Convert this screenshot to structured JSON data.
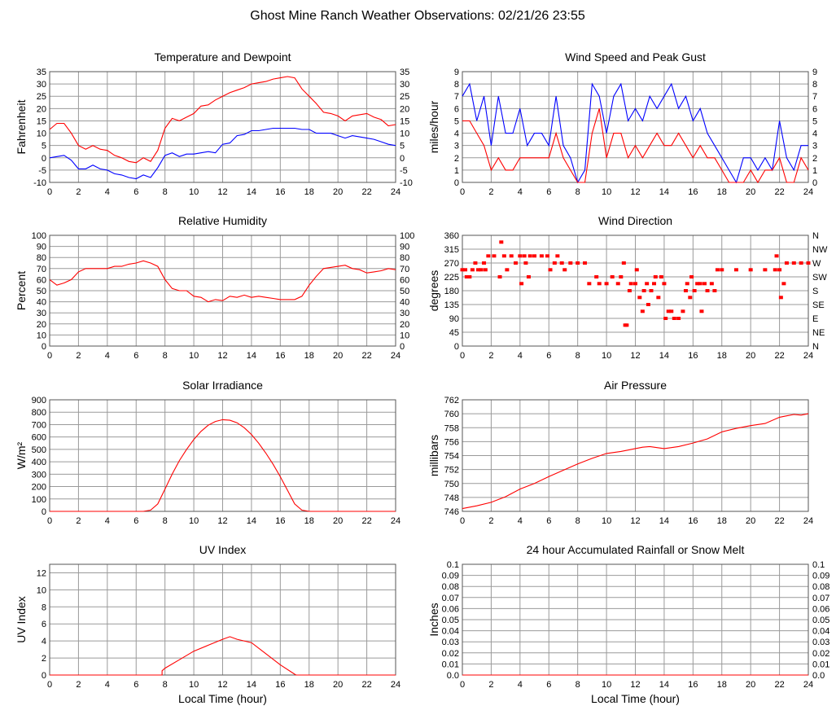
{
  "page_title": "Ghost Mine Ranch Weather Observations: 02/21/26 23:55",
  "xlabel": "Local Time (hour)",
  "xticks": [
    "0",
    "2",
    "4",
    "6",
    "8",
    "10",
    "12",
    "14",
    "16",
    "18",
    "20",
    "22",
    "24"
  ],
  "chart_data": [
    {
      "id": "temperature",
      "type": "line",
      "title": "Temperature and Dewpoint",
      "ylabel": "Fahrenheit",
      "ylim": [
        -10,
        35
      ],
      "yticks": [
        "-10",
        "-5",
        "0",
        "5",
        "10",
        "15",
        "20",
        "25",
        "30",
        "35"
      ],
      "right_ticks": [
        "-10",
        "-5",
        "0",
        "5",
        "10",
        "15",
        "20",
        "25",
        "30",
        "35"
      ],
      "xlim": [
        0,
        24
      ],
      "series": [
        {
          "color": "#ff0000",
          "x": [
            0,
            0.5,
            1,
            1.5,
            2,
            2.5,
            3,
            3.5,
            4,
            4.5,
            5,
            5.5,
            6,
            6.5,
            7,
            7.5,
            8,
            8.5,
            9,
            9.5,
            10,
            10.5,
            11,
            11.5,
            12,
            12.5,
            13,
            13.5,
            14,
            14.5,
            15,
            15.5,
            16,
            16.5,
            17,
            17.5,
            18,
            18.5,
            19,
            19.5,
            20,
            20.5,
            21,
            21.5,
            22,
            22.5,
            23,
            23.5,
            24
          ],
          "y": [
            11.5,
            14,
            14,
            10,
            5,
            3.5,
            5,
            3.5,
            3,
            1,
            0,
            -1.5,
            -2,
            0,
            -1.5,
            3,
            12,
            16,
            15,
            16.5,
            18,
            21,
            21.5,
            23.5,
            25,
            26.5,
            27.5,
            28.5,
            30,
            30.5,
            31,
            32,
            32.5,
            33,
            32.5,
            28,
            25,
            22,
            18.5,
            18,
            17,
            15,
            17,
            17.5,
            18,
            16.5,
            15.5,
            13,
            13.5
          ]
        },
        {
          "color": "#0000ff",
          "x": [
            0,
            0.5,
            1,
            1.5,
            2,
            2.5,
            3,
            3.5,
            4,
            4.5,
            5,
            5.5,
            6,
            6.5,
            7,
            7.5,
            8,
            8.5,
            9,
            9.5,
            10,
            10.5,
            11,
            11.5,
            12,
            12.5,
            13,
            13.5,
            14,
            14.5,
            15,
            15.5,
            16,
            16.5,
            17,
            17.5,
            18,
            18.5,
            19,
            19.5,
            20,
            20.5,
            21,
            21.5,
            22,
            22.5,
            23,
            23.5,
            24
          ],
          "y": [
            0,
            0.5,
            1,
            -1,
            -4.5,
            -4.5,
            -3,
            -4.5,
            -5,
            -6.5,
            -7,
            -8,
            -8.5,
            -7,
            -8,
            -4,
            1,
            2,
            0.5,
            1.5,
            1.5,
            2,
            2.5,
            2,
            5.5,
            6,
            9,
            9.5,
            11,
            11,
            11.5,
            12,
            12,
            12,
            12,
            11.5,
            11.5,
            10,
            10,
            10,
            9,
            8,
            9,
            8.5,
            8,
            7.5,
            6.5,
            5.5,
            5
          ]
        }
      ]
    },
    {
      "id": "wind-speed",
      "type": "line",
      "title": "Wind Speed and Peak Gust",
      "ylabel": "miles/hour",
      "ylim": [
        0,
        9
      ],
      "yticks": [
        "0",
        "1",
        "2",
        "3",
        "4",
        "5",
        "6",
        "7",
        "8",
        "9"
      ],
      "right_ticks": [
        "0",
        "1",
        "2",
        "3",
        "4",
        "5",
        "6",
        "7",
        "8",
        "9"
      ],
      "xlim": [
        0,
        24
      ],
      "series": [
        {
          "color": "#0000ff",
          "x": [
            0,
            0.5,
            1,
            1.5,
            2,
            2.5,
            3,
            3.5,
            4,
            4.5,
            5,
            5.5,
            6,
            6.5,
            7,
            7.5,
            8,
            8.5,
            9,
            9.5,
            10,
            10.5,
            11,
            11.5,
            12,
            12.5,
            13,
            13.5,
            14,
            14.5,
            15,
            15.5,
            16,
            16.5,
            17,
            17.5,
            18,
            18.5,
            19,
            19.5,
            20,
            20.5,
            21,
            21.5,
            22,
            22.5,
            23,
            23.5,
            24
          ],
          "y": [
            7,
            8,
            5,
            7,
            3,
            7,
            4,
            4,
            6,
            3,
            4,
            4,
            3,
            7,
            3,
            2,
            0,
            1,
            8,
            7,
            4,
            7,
            8,
            5,
            6,
            5,
            7,
            6,
            7,
            8,
            6,
            7,
            5,
            6,
            4,
            3,
            2,
            1,
            0,
            2,
            2,
            1,
            2,
            1,
            5,
            2,
            1,
            3,
            3
          ]
        },
        {
          "color": "#ff0000",
          "x": [
            0,
            0.5,
            1,
            1.5,
            2,
            2.5,
            3,
            3.5,
            4,
            4.5,
            5,
            5.5,
            6,
            6.5,
            7,
            7.5,
            8,
            8.5,
            9,
            9.5,
            10,
            10.5,
            11,
            11.5,
            12,
            12.5,
            13,
            13.5,
            14,
            14.5,
            15,
            15.5,
            16,
            16.5,
            17,
            17.5,
            18,
            18.5,
            19,
            19.5,
            20,
            20.5,
            21,
            21.5,
            22,
            22.5,
            23,
            23.5,
            24
          ],
          "y": [
            5,
            5,
            4,
            3,
            1,
            2,
            1,
            1,
            2,
            2,
            2,
            2,
            2,
            4,
            2,
            1,
            0,
            0,
            4,
            6,
            2,
            4,
            4,
            2,
            3,
            2,
            3,
            4,
            3,
            3,
            4,
            3,
            2,
            3,
            2,
            2,
            1,
            0,
            0,
            0,
            1,
            0,
            1,
            1,
            2,
            0,
            0,
            2,
            1
          ]
        }
      ]
    },
    {
      "id": "humidity",
      "type": "line",
      "title": "Relative Humidity",
      "ylabel": "Percent",
      "ylim": [
        0,
        100
      ],
      "yticks": [
        "0",
        "10",
        "20",
        "30",
        "40",
        "50",
        "60",
        "70",
        "80",
        "90",
        "100"
      ],
      "right_ticks": [
        "0",
        "10",
        "20",
        "30",
        "40",
        "50",
        "60",
        "70",
        "80",
        "90",
        "100"
      ],
      "xlim": [
        0,
        24
      ],
      "series": [
        {
          "color": "#ff0000",
          "x": [
            0,
            0.5,
            1,
            1.5,
            2,
            2.5,
            3,
            3.5,
            4,
            4.5,
            5,
            5.5,
            6,
            6.5,
            7,
            7.5,
            8,
            8.5,
            9,
            9.5,
            10,
            10.5,
            11,
            11.5,
            12,
            12.5,
            13,
            13.5,
            14,
            14.5,
            15,
            15.5,
            16,
            16.5,
            17,
            17.5,
            18,
            18.5,
            19,
            19.5,
            20,
            20.5,
            21,
            21.5,
            22,
            22.5,
            23,
            23.5,
            24
          ],
          "y": [
            60,
            55,
            57,
            60,
            67,
            70,
            70,
            70,
            70,
            72,
            72,
            74,
            75,
            77,
            75,
            72,
            60,
            52,
            50,
            50,
            45,
            44,
            40,
            42,
            41,
            45,
            44,
            46,
            44,
            45,
            44,
            43,
            42,
            42,
            42,
            45,
            55,
            63,
            70,
            71,
            72,
            73,
            70,
            69,
            66,
            67,
            68,
            70,
            69
          ]
        }
      ]
    },
    {
      "id": "wind-direction",
      "type": "scatter",
      "title": "Wind Direction",
      "ylabel": "degrees",
      "ylim": [
        0,
        360
      ],
      "yticks": [
        "0",
        "45",
        "90",
        "135",
        "180",
        "225",
        "270",
        "315",
        "360"
      ],
      "right_ticks": [
        "N",
        "NE",
        "E",
        "SE",
        "S",
        "SW",
        "W",
        "NW",
        "N"
      ],
      "xlim": [
        0,
        24
      ],
      "series": [
        {
          "color": "#ff0000",
          "x": [
            0,
            0.2,
            0.3,
            0.5,
            0.7,
            0.9,
            1.1,
            1.3,
            1.5,
            1.6,
            1.8,
            2.2,
            2.6,
            2.7,
            2.9,
            3.1,
            3.4,
            3.7,
            4,
            4.1,
            4.3,
            4.4,
            4.6,
            4.7,
            5,
            5.5,
            5.9,
            6.1,
            6.4,
            6.6,
            6.9,
            7.1,
            7.5,
            8,
            8.5,
            8.8,
            9.3,
            9.5,
            10,
            10.4,
            10.8,
            11,
            11.2,
            11.3,
            11.4,
            11.6,
            11.7,
            12,
            12.1,
            12.3,
            12.5,
            12.6,
            12.8,
            12.9,
            13.1,
            13.3,
            13.4,
            13.6,
            13.8,
            14,
            14.1,
            14.3,
            14.5,
            14.7,
            15,
            15.3,
            15.5,
            15.6,
            15.8,
            15.9,
            16.1,
            16.3,
            16.5,
            16.6,
            16.8,
            17,
            17.3,
            17.5,
            17.7,
            18,
            19,
            20,
            21,
            21.7,
            21.8,
            22,
            22.1,
            22.3,
            22.5,
            23,
            23.5,
            24
          ],
          "y": [
            248,
            248,
            225,
            225,
            248,
            270,
            248,
            248,
            270,
            248,
            293,
            293,
            225,
            338,
            293,
            248,
            293,
            270,
            293,
            203,
            293,
            270,
            225,
            293,
            293,
            293,
            293,
            248,
            270,
            293,
            270,
            248,
            270,
            270,
            270,
            203,
            225,
            203,
            203,
            225,
            203,
            225,
            270,
            68,
            68,
            180,
            203,
            203,
            248,
            158,
            113,
            180,
            203,
            135,
            180,
            203,
            225,
            158,
            225,
            203,
            90,
            113,
            113,
            90,
            90,
            113,
            180,
            203,
            158,
            225,
            180,
            203,
            203,
            113,
            203,
            180,
            203,
            180,
            248,
            248,
            248,
            248,
            248,
            248,
            293,
            248,
            158,
            203,
            270,
            270,
            270,
            270
          ]
        }
      ]
    },
    {
      "id": "solar",
      "type": "line",
      "title": "Solar Irradiance",
      "ylabel": "W/m²",
      "ylim": [
        0,
        900
      ],
      "yticks": [
        "0",
        "100",
        "200",
        "300",
        "400",
        "500",
        "600",
        "700",
        "800",
        "900"
      ],
      "right_ticks": [],
      "xlim": [
        0,
        24
      ],
      "series": [
        {
          "color": "#ff0000",
          "x": [
            0,
            6.5,
            7,
            7.5,
            8,
            8.5,
            9,
            9.5,
            10,
            10.5,
            11,
            11.5,
            12,
            12.5,
            13,
            13.5,
            14,
            14.5,
            15,
            15.5,
            16,
            16.5,
            17,
            17.5,
            18,
            24
          ],
          "y": [
            0,
            0,
            10,
            60,
            180,
            300,
            410,
            500,
            580,
            645,
            695,
            725,
            740,
            735,
            715,
            675,
            620,
            550,
            470,
            380,
            280,
            170,
            60,
            10,
            0,
            0
          ]
        }
      ]
    },
    {
      "id": "pressure",
      "type": "line",
      "title": "Air Pressure",
      "ylabel": "millibars",
      "ylim": [
        746,
        762
      ],
      "yticks": [
        "746",
        "748",
        "750",
        "752",
        "754",
        "756",
        "758",
        "760",
        "762"
      ],
      "right_ticks": [],
      "xlim": [
        0,
        24
      ],
      "series": [
        {
          "color": "#ff0000",
          "x": [
            0,
            1,
            2,
            3,
            4,
            5,
            6,
            7,
            8,
            9,
            10,
            11,
            12,
            12.5,
            13,
            14,
            15,
            16,
            17,
            18,
            19,
            20,
            21,
            22,
            22.5,
            23,
            23.5,
            24
          ],
          "y": [
            746.4,
            746.8,
            747.3,
            748.1,
            749.2,
            750,
            751,
            751.9,
            752.8,
            753.6,
            754.3,
            754.6,
            755,
            755.2,
            755.3,
            755,
            755.3,
            755.8,
            756.4,
            757.4,
            757.9,
            758.3,
            758.6,
            759.5,
            759.7,
            759.9,
            759.8,
            760
          ]
        }
      ]
    },
    {
      "id": "uv",
      "type": "line",
      "title": "UV Index",
      "ylabel": "UV Index",
      "ylim": [
        0,
        13
      ],
      "yticks": [
        "0",
        "2",
        "4",
        "6",
        "8",
        "10",
        "12"
      ],
      "right_ticks": [],
      "xlim": [
        0,
        24
      ],
      "series": [
        {
          "color": "#ff0000",
          "x": [
            0,
            7.8,
            7.8,
            8,
            9,
            10,
            11,
            12,
            12.5,
            13,
            14,
            15,
            16,
            17,
            17.1,
            24
          ],
          "y": [
            0,
            0,
            0.5,
            0.8,
            1.8,
            2.8,
            3.5,
            4.2,
            4.5,
            4.2,
            3.8,
            2.5,
            1.2,
            0.1,
            0,
            0
          ]
        }
      ]
    },
    {
      "id": "rain",
      "type": "line",
      "title": "24 hour Accumulated Rainfall or Snow Melt",
      "ylabel": "Inches",
      "ylim": [
        0,
        0.1
      ],
      "yticks": [
        "0.0",
        "0.01",
        "0.02",
        "0.03",
        "0.04",
        "0.05",
        "0.06",
        "0.07",
        "0.08",
        "0.09",
        "0.1"
      ],
      "right_ticks": [
        "0.0",
        "0.01",
        "0.02",
        "0.03",
        "0.04",
        "0.05",
        "0.06",
        "0.07",
        "0.08",
        "0.09",
        "0.1"
      ],
      "xlim": [
        0,
        24
      ],
      "series": [
        {
          "color": "#ff0000",
          "x": [
            0,
            24
          ],
          "y": [
            0,
            0
          ]
        }
      ]
    }
  ]
}
